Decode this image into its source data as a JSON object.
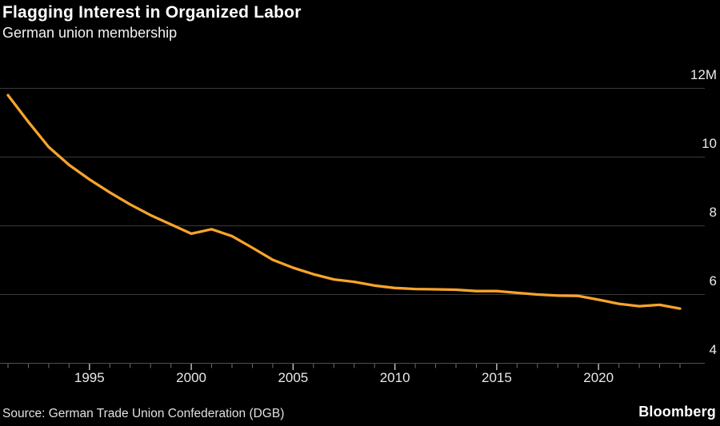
{
  "header": {
    "title": "Flagging Interest in Organized Labor",
    "subtitle": "German union membership"
  },
  "footer": {
    "source": "Source: German Trade Union Confederation (DGB)",
    "brand": "Bloomberg"
  },
  "chart_data": {
    "type": "line",
    "title": "Flagging Interest in Organized Labor",
    "subtitle": "German union membership",
    "series_name": "German union membership (DGB), millions of members",
    "x": [
      1991,
      1992,
      1993,
      1994,
      1995,
      1996,
      1997,
      1998,
      1999,
      2000,
      2001,
      2002,
      2003,
      2004,
      2005,
      2006,
      2007,
      2008,
      2009,
      2010,
      2011,
      2012,
      2013,
      2014,
      2015,
      2016,
      2017,
      2018,
      2019,
      2020,
      2021,
      2022,
      2023,
      2024
    ],
    "values": [
      11.8,
      11.02,
      10.29,
      9.77,
      9.35,
      8.97,
      8.62,
      8.31,
      8.04,
      7.77,
      7.9,
      7.7,
      7.36,
      7.01,
      6.78,
      6.59,
      6.44,
      6.37,
      6.26,
      6.19,
      6.16,
      6.15,
      6.14,
      6.1,
      6.1,
      6.05,
      6.0,
      5.97,
      5.96,
      5.85,
      5.73,
      5.66,
      5.7,
      5.59
    ],
    "ylim": [
      4,
      12
    ],
    "xlim": [
      1991,
      2024
    ],
    "y_ticks": [
      {
        "value": 12,
        "label": "12M"
      },
      {
        "value": 10,
        "label": "10"
      },
      {
        "value": 8,
        "label": "8"
      },
      {
        "value": 6,
        "label": "6"
      },
      {
        "value": 4,
        "label": "4"
      }
    ],
    "x_tick_labeled_years": [
      1995,
      2000,
      2005,
      2010,
      2015,
      2020
    ],
    "x_minor_tick_step": 1,
    "grid": "horizontal",
    "legend": "none",
    "colors": {
      "line": "#F7A42B",
      "background": "#000000",
      "gridline": "#3A3A3A",
      "axis_line": "#4F4F4F",
      "major_tick": "#C9C9C9",
      "minor_tick": "#6E6E6E",
      "label_text": "#E9E9E9"
    }
  }
}
